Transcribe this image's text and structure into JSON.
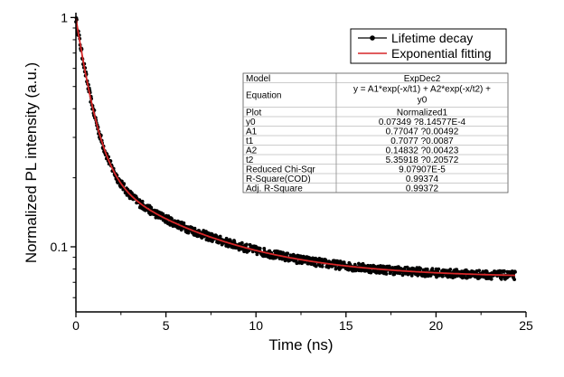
{
  "chart_data": {
    "type": "scatter",
    "xlabel": "Time (ns)",
    "ylabel": "Normalized PL intensity (a.u.)",
    "xlim": [
      0,
      25
    ],
    "ylim": [
      0.052,
      1.05
    ],
    "y_scale": "log",
    "x_ticks": [
      "0",
      "5",
      "10",
      "15",
      "20",
      "25"
    ],
    "y_ticks": [
      {
        "value": 1,
        "label": "1"
      },
      {
        "value": 0.1,
        "label": "0.1"
      }
    ],
    "grid": false,
    "legend_position": "top-right",
    "series": [
      {
        "name": "Lifetime decay",
        "kind": "scatter-line",
        "color": "#000000",
        "x_start": 0,
        "x_end": 24.4,
        "model": {
          "y0": 0.07349,
          "A1": 0.77047,
          "t1": 0.7077,
          "A2": 0.14832,
          "t2": 5.35918
        }
      },
      {
        "name": "Exponential fitting",
        "kind": "line",
        "color": "#d62728",
        "x_start": 0,
        "x_end": 24.4,
        "model": {
          "y0": 0.07349,
          "A1": 0.77047,
          "t1": 0.7077,
          "A2": 0.14832,
          "t2": 5.35918
        }
      }
    ],
    "fit_table": {
      "rows": [
        [
          "Model",
          "ExpDec2"
        ],
        [
          "Equation",
          "y = A1*exp(-x/t1) + A2*exp(-x/t2) + y0"
        ],
        [
          "Plot",
          "Normalized1"
        ],
        [
          "y0",
          "0.07349 ?8.14577E-4"
        ],
        [
          "A1",
          "0.77047 ?0.00492"
        ],
        [
          "t1",
          "0.7077 ?0.0087"
        ],
        [
          "A2",
          "0.14832 ?0.00423"
        ],
        [
          "t2",
          "5.35918 ?0.20572"
        ],
        [
          "Reduced Chi-Sqr",
          "9.07907E-5"
        ],
        [
          "R-Square(COD)",
          "0.99374"
        ],
        [
          "Adj. R-Square",
          "0.99372"
        ]
      ]
    }
  }
}
